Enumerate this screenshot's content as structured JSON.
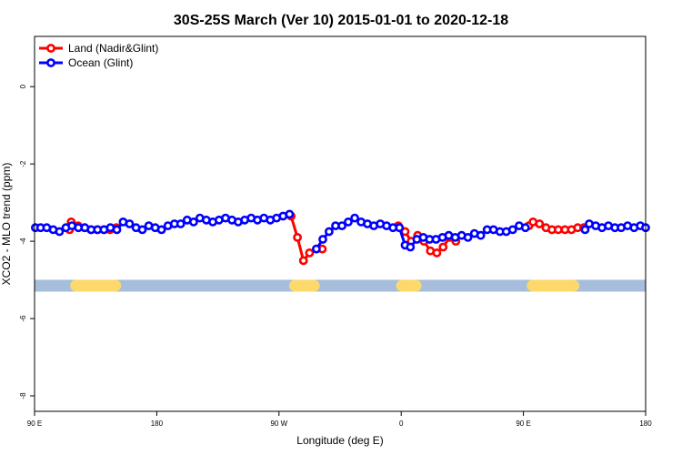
{
  "chart_data": {
    "type": "line",
    "title": "30S-25S March (Ver 10)   2015-01-01 to 2020-12-18",
    "xlabel": "Longitude (deg E)",
    "ylabel": "XCO2 - MLO trend (ppm)",
    "xlim": [
      90,
      450
    ],
    "ylim": [
      -8.4,
      1.3
    ],
    "x_ticks": [
      {
        "value": 90,
        "label": "90 E"
      },
      {
        "value": 162,
        "label": "180"
      },
      {
        "value": 234,
        "label": "90 W"
      },
      {
        "value": 306,
        "label": "0"
      },
      {
        "value": 378,
        "label": "90 E"
      },
      {
        "value": 450,
        "label": "180"
      }
    ],
    "y_ticks": [
      {
        "value": 0,
        "label": "0"
      },
      {
        "value": -2,
        "label": "-2"
      },
      {
        "value": -4,
        "label": "-4"
      },
      {
        "value": -6,
        "label": "-6"
      },
      {
        "value": -8,
        "label": "-8"
      }
    ],
    "legend": {
      "position": "top-left"
    },
    "colors": {
      "land": "#ff0000",
      "ocean": "#0000ff",
      "ocean_band": "#a6bddb",
      "land_band": "#fdd96b"
    },
    "band": {
      "y": -5.15,
      "land_segments": [
        [
          111,
          141
        ],
        [
          240,
          258
        ],
        [
          303,
          318
        ],
        [
          380,
          411
        ]
      ]
    },
    "series": [
      {
        "name": "Land (Nadir&Glint)",
        "color": "#ff0000",
        "segments": [
          {
            "x": [
              110.6,
              111.6,
              115.6,
              119.4,
              123.2,
              126.9,
              130.9,
              134.4,
              138.2
            ],
            "y": [
              -3.7,
              -3.5,
              -3.6,
              -3.65,
              -3.7,
              -3.7,
              -3.7,
              -3.7,
              -3.65
            ]
          },
          {
            "x": [
              241.1,
              244.9,
              248.4,
              252.0,
              256.0,
              259.5
            ],
            "y": [
              -3.35,
              -3.9,
              -4.5,
              -4.3,
              -4.2,
              -4.2
            ]
          },
          {
            "x": [
              304.3,
              308.3,
              311.9,
              315.7,
              319.4,
              323.2,
              327.0,
              330.7,
              334.5,
              338.2
            ],
            "y": [
              -3.6,
              -3.75,
              -4.0,
              -3.85,
              -4.0,
              -4.25,
              -4.3,
              -4.15,
              -3.9,
              -4.0
            ]
          },
          {
            "x": [
              381.2,
              383.7,
              387.5,
              391.3,
              394.8,
              398.5,
              402.5,
              406.3,
              410.0,
              413.5
            ],
            "y": [
              -3.6,
              -3.5,
              -3.55,
              -3.65,
              -3.7,
              -3.7,
              -3.7,
              -3.7,
              -3.65,
              -3.65
            ]
          }
        ]
      },
      {
        "name": "Ocean (Glint)",
        "color": "#0000ff",
        "segments": [
          {
            "x": [
              90.5,
              93.6,
              97.2,
              101.0,
              104.7,
              108.5,
              112.0,
              115.8,
              119.6,
              123.4,
              127.1,
              130.9,
              134.7,
              138.5,
              142.2,
              146.0,
              149.8,
              153.5,
              157.3,
              161.1,
              164.8,
              168.6,
              172.4,
              176.1,
              179.9,
              183.7,
              187.4,
              191.2,
              195.0,
              198.7,
              202.5,
              206.3,
              210.0,
              213.8,
              217.6,
              221.3,
              225.1,
              228.9,
              232.6,
              236.4,
              240.2
            ],
            "y": [
              -3.65,
              -3.65,
              -3.65,
              -3.7,
              -3.75,
              -3.65,
              -3.6,
              -3.65,
              -3.65,
              -3.7,
              -3.7,
              -3.7,
              -3.65,
              -3.7,
              -3.5,
              -3.55,
              -3.65,
              -3.7,
              -3.6,
              -3.65,
              -3.7,
              -3.6,
              -3.55,
              -3.55,
              -3.45,
              -3.5,
              -3.4,
              -3.45,
              -3.5,
              -3.45,
              -3.4,
              -3.45,
              -3.5,
              -3.45,
              -3.4,
              -3.45,
              -3.4,
              -3.45,
              -3.4,
              -3.35,
              -3.3
            ]
          },
          {
            "x": [
              256.0,
              259.8,
              263.5,
              267.3,
              271.1,
              274.8,
              278.6,
              282.4,
              286.1,
              289.9,
              293.7,
              297.4,
              301.2,
              305.0,
              308.3
            ],
            "y": [
              -4.2,
              -3.95,
              -3.75,
              -3.6,
              -3.6,
              -3.5,
              -3.4,
              -3.5,
              -3.55,
              -3.6,
              -3.55,
              -3.6,
              -3.65,
              -3.65,
              -4.1
            ]
          },
          {
            "x": [
              311.4,
              315.2,
              319.0,
              322.7,
              326.5,
              330.3,
              334.0,
              337.8,
              341.6,
              345.3,
              349.1,
              352.9,
              356.6,
              360.4,
              364.2,
              367.9,
              371.7,
              375.5,
              379.2
            ],
            "y": [
              -4.15,
              -3.95,
              -3.9,
              -3.95,
              -3.95,
              -3.9,
              -3.85,
              -3.9,
              -3.85,
              -3.9,
              -3.8,
              -3.85,
              -3.7,
              -3.7,
              -3.75,
              -3.75,
              -3.7,
              -3.6,
              -3.65
            ]
          },
          {
            "x": [
              414.3,
              416.8,
              420.6,
              424.3,
              428.1,
              431.9,
              435.6,
              439.4,
              443.2,
              446.9,
              450.0
            ],
            "y": [
              -3.7,
              -3.55,
              -3.6,
              -3.65,
              -3.6,
              -3.65,
              -3.65,
              -3.6,
              -3.65,
              -3.6,
              -3.65
            ]
          }
        ]
      }
    ]
  }
}
